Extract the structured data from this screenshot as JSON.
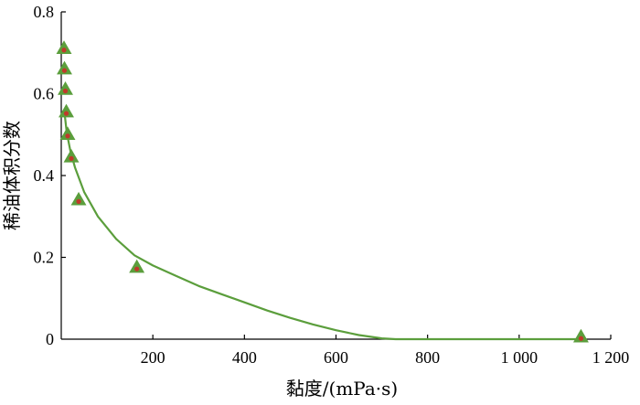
{
  "chart_data": {
    "type": "scatter",
    "title": "",
    "xlabel": "黏度/(mPa·s)",
    "ylabel": "稀油体积分数",
    "xlim": [
      0,
      1200
    ],
    "ylim": [
      0,
      0.8
    ],
    "x_ticks": [
      {
        "value": 200,
        "label": "200"
      },
      {
        "value": 400,
        "label": "400"
      },
      {
        "value": 600,
        "label": "600"
      },
      {
        "value": 800,
        "label": "800"
      },
      {
        "value": 1000,
        "label": "1 000"
      },
      {
        "value": 1200,
        "label": "1 200"
      }
    ],
    "y_ticks": [
      {
        "value": 0,
        "label": "0"
      },
      {
        "value": 0.2,
        "label": "0.2"
      },
      {
        "value": 0.4,
        "label": "0.4"
      },
      {
        "value": 0.6,
        "label": "0.6"
      },
      {
        "value": 0.8,
        "label": "0.8"
      }
    ],
    "grid": false,
    "legend": "none",
    "series": [
      {
        "kind": "scatter",
        "marker": "triangle",
        "color": "#5b9e3c",
        "inner_color": "#c0392b",
        "x": [
          6,
          7,
          9,
          11,
          14,
          22,
          38,
          165,
          1135
        ],
        "y": [
          0.71,
          0.66,
          0.61,
          0.555,
          0.5,
          0.445,
          0.34,
          0.175,
          0.005
        ]
      },
      {
        "kind": "line",
        "color": "#5b9e3c",
        "x": [
          8,
          12,
          20,
          30,
          50,
          80,
          120,
          160,
          200,
          250,
          300,
          350,
          400,
          450,
          500,
          550,
          600,
          650,
          700,
          730,
          800,
          900,
          1000,
          1135
        ],
        "y": [
          0.545,
          0.505,
          0.46,
          0.42,
          0.36,
          0.3,
          0.245,
          0.205,
          0.18,
          0.155,
          0.13,
          0.11,
          0.09,
          0.07,
          0.052,
          0.036,
          0.022,
          0.01,
          0.002,
          0.0,
          0.0,
          0.0,
          0.0,
          0.0
        ]
      }
    ]
  }
}
